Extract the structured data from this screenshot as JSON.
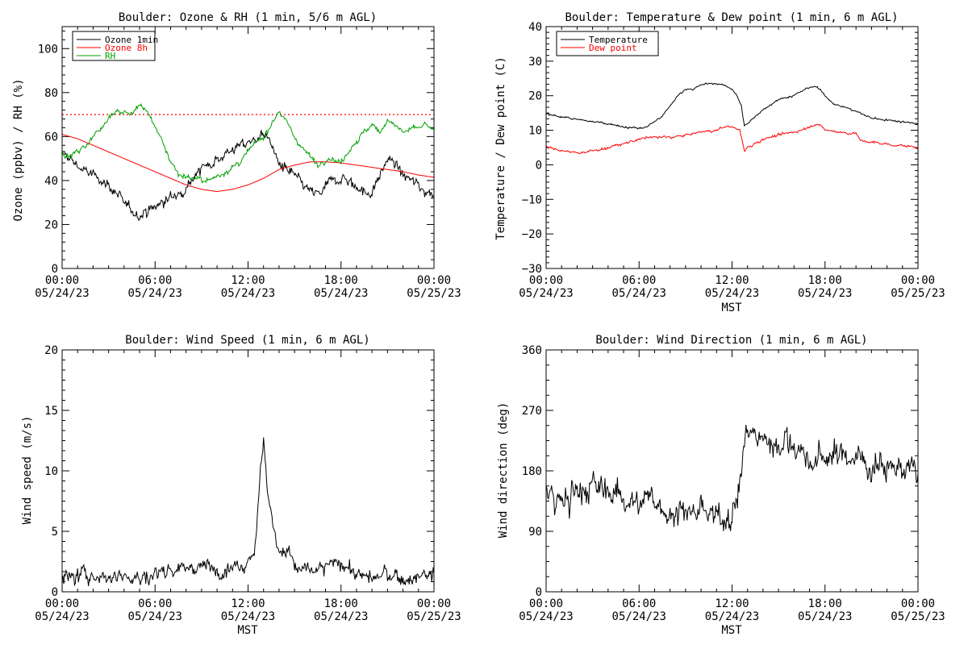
{
  "figure": {
    "background": "#ffffff"
  },
  "panels": [
    {
      "id": "ozone-rh",
      "title": "Boulder: Ozone & RH (1 min, 5/6 m AGL)",
      "ylabel": "Ozone (ppbv) / RH (%)",
      "xlabel": "",
      "yticks": [
        "0",
        "20",
        "40",
        "60",
        "80",
        "100"
      ],
      "xticks_time": [
        "00:00",
        "06:00",
        "12:00",
        "18:00",
        "00:00"
      ],
      "xticks_date": [
        "05/24/23",
        "05/24/23",
        "05/24/23",
        "05/24/23",
        "05/25/23"
      ],
      "legend": [
        "Ozone 1min",
        "Ozone 8h",
        "RH"
      ]
    },
    {
      "id": "temp-dew",
      "title": "Boulder: Temperature & Dew point (1 min, 6 m AGL)",
      "ylabel": "Temperature / Dew point (C)",
      "xlabel": "MST",
      "yticks": [
        "−30",
        "−20",
        "−10",
        "0",
        "10",
        "20",
        "30",
        "40"
      ],
      "xticks_time": [
        "00:00",
        "06:00",
        "12:00",
        "18:00",
        "00:00"
      ],
      "xticks_date": [
        "05/24/23",
        "05/24/23",
        "05/24/23",
        "05/24/23",
        "05/25/23"
      ],
      "legend": [
        "Temperature",
        "Dew point"
      ]
    },
    {
      "id": "wind-speed",
      "title": "Boulder: Wind Speed (1 min, 6 m AGL)",
      "ylabel": "Wind speed (m/s)",
      "xlabel": "MST",
      "yticks": [
        "0",
        "5",
        "10",
        "15",
        "20"
      ],
      "xticks_time": [
        "00:00",
        "06:00",
        "12:00",
        "18:00",
        "00:00"
      ],
      "xticks_date": [
        "05/24/23",
        "05/24/23",
        "05/24/23",
        "05/24/23",
        "05/25/23"
      ],
      "legend": []
    },
    {
      "id": "wind-dir",
      "title": "Boulder: Wind Direction (1 min, 6 m AGL)",
      "ylabel": "Wind direction (deg)",
      "xlabel": "MST",
      "yticks": [
        "0",
        "90",
        "180",
        "270",
        "360"
      ],
      "xticks_time": [
        "00:00",
        "06:00",
        "12:00",
        "18:00",
        "00:00"
      ],
      "xticks_date": [
        "05/24/23",
        "05/24/23",
        "05/24/23",
        "05/24/23",
        "05/25/23"
      ],
      "legend": []
    }
  ],
  "chart_data": [
    {
      "type": "line",
      "title": "Boulder: Ozone & RH (1 min, 5/6 m AGL)",
      "xlabel": "",
      "ylabel": "Ozone (ppbv) / RH (%)",
      "xlim": [
        0,
        24
      ],
      "ylim": [
        0,
        110
      ],
      "yticks": [
        0,
        20,
        40,
        60,
        80,
        100
      ],
      "legend_position": "top-left",
      "reference_lines": [
        {
          "y": 70,
          "style": "dotted",
          "color": "#ff0000"
        }
      ],
      "series": [
        {
          "name": "Ozone 1min",
          "color": "#000000",
          "noise": 3,
          "x": [
            0,
            0.5,
            1,
            1.5,
            2,
            2.5,
            3,
            3.5,
            4,
            4.5,
            5,
            5.5,
            6,
            6.5,
            7,
            7.5,
            8,
            8.5,
            9,
            9.5,
            10,
            10.5,
            11,
            11.5,
            12,
            12.5,
            13,
            13.5,
            14,
            14.5,
            15,
            15.5,
            16,
            16.5,
            17,
            17.5,
            18,
            18.5,
            19,
            19.5,
            20,
            20.5,
            21,
            21.5,
            22,
            22.5,
            23,
            23.5,
            24
          ],
          "values": [
            52,
            50,
            47,
            44,
            42,
            41,
            38,
            34,
            29,
            26,
            25,
            26,
            28,
            30,
            32,
            34,
            38,
            42,
            45,
            48,
            50,
            52,
            54,
            56,
            57,
            59,
            62,
            56,
            48,
            44,
            42,
            38,
            35,
            33,
            37,
            40,
            42,
            40,
            37,
            35,
            34,
            42,
            50,
            48,
            42,
            40,
            38,
            35,
            35
          ]
        },
        {
          "name": "Ozone 8h",
          "color": "#ff0000",
          "noise": 0,
          "x": [
            0,
            1,
            2,
            3,
            4,
            5,
            6,
            7,
            8,
            9,
            10,
            11,
            12,
            13,
            14,
            15,
            16,
            17,
            18,
            19,
            20,
            21,
            22,
            23,
            24
          ],
          "values": [
            61,
            59,
            56,
            53,
            50,
            47,
            44,
            41,
            38,
            36,
            35,
            36,
            38,
            41,
            45,
            47,
            48.5,
            48.5,
            48,
            47,
            46,
            45,
            44,
            42.5,
            41.5
          ]
        },
        {
          "name": "RH",
          "color": "#00a000",
          "noise": 1.5,
          "x": [
            0,
            0.5,
            1,
            1.5,
            2,
            2.5,
            3,
            3.5,
            4,
            4.5,
            5,
            5.5,
            6,
            6.5,
            7,
            7.5,
            8,
            8.5,
            9,
            9.5,
            10,
            10.5,
            11,
            11.5,
            12,
            12.5,
            13,
            13.5,
            14,
            14.5,
            15,
            15.5,
            16,
            16.5,
            17,
            17.5,
            18,
            18.5,
            19,
            19.5,
            20,
            20.5,
            21,
            21.5,
            22,
            22.5,
            23,
            23.5,
            24
          ],
          "values": [
            52,
            51,
            53,
            56,
            60,
            64,
            69,
            72,
            71,
            70,
            75,
            71,
            65,
            57,
            49,
            43,
            42,
            41,
            40,
            40,
            42,
            44,
            46,
            48,
            53,
            57,
            60,
            66,
            72,
            66,
            60,
            55,
            51,
            47,
            50,
            50,
            48,
            54,
            58,
            62,
            65,
            62,
            68,
            65,
            62,
            63,
            64,
            65,
            63
          ]
        }
      ]
    },
    {
      "type": "line",
      "title": "Boulder: Temperature & Dew point (1 min, 6 m AGL)",
      "xlabel": "MST",
      "ylabel": "Temperature / Dew point (C)",
      "xlim": [
        0,
        24
      ],
      "ylim": [
        -30,
        40
      ],
      "yticks": [
        -30,
        -20,
        -10,
        0,
        10,
        20,
        30,
        40
      ],
      "legend_position": "top-left",
      "series": [
        {
          "name": "Temperature",
          "color": "#000000",
          "noise": 0.35,
          "x": [
            0,
            1,
            2,
            3,
            4,
            5,
            6,
            6.5,
            7,
            7.5,
            8,
            8.5,
            9,
            9.5,
            10,
            10.5,
            11,
            11.5,
            12,
            12.3,
            12.6,
            12.8,
            13,
            13.5,
            14,
            15,
            16,
            17,
            17.5,
            18,
            18.5,
            19,
            20,
            21,
            22,
            23,
            24
          ],
          "values": [
            14.5,
            14,
            13,
            12.5,
            12,
            11,
            10.5,
            11,
            12.5,
            14,
            17,
            20,
            22,
            22,
            23,
            23.5,
            23.5,
            23,
            22,
            20,
            17,
            11,
            12,
            14,
            16,
            19,
            20,
            22.5,
            22.5,
            20,
            18,
            17,
            15.5,
            13.5,
            13,
            12.5,
            12
          ]
        },
        {
          "name": "Dew point",
          "color": "#ff0000",
          "noise": 0.45,
          "x": [
            0,
            1,
            2,
            3,
            4,
            5,
            6,
            7,
            8,
            9,
            10,
            11,
            11.5,
            12,
            12.5,
            12.8,
            13,
            14,
            15,
            16,
            17,
            17.5,
            18,
            19,
            20,
            20.3,
            21,
            22,
            23,
            24
          ],
          "values": [
            5,
            4,
            3.5,
            4,
            5,
            6,
            7.5,
            8,
            8,
            8.5,
            9.5,
            10,
            11,
            11,
            10,
            4,
            5,
            7.5,
            8.5,
            9.5,
            11,
            12,
            10,
            9.5,
            9,
            7,
            6.5,
            6,
            5.5,
            5
          ]
        }
      ]
    },
    {
      "type": "line",
      "title": "Boulder: Wind Speed (1 min, 6 m AGL)",
      "xlabel": "MST",
      "ylabel": "Wind speed (m/s)",
      "xlim": [
        0,
        24
      ],
      "ylim": [
        0,
        20
      ],
      "yticks": [
        0,
        5,
        10,
        15,
        20
      ],
      "series": [
        {
          "name": "",
          "color": "#000000",
          "noise": 0.8,
          "x": [
            0,
            1,
            2,
            3,
            4,
            5,
            6,
            7,
            8,
            9,
            10,
            11,
            12,
            12.5,
            12.8,
            13,
            13.2,
            13.5,
            14,
            14.5,
            15,
            15.5,
            16,
            17,
            18,
            19,
            20,
            21,
            22,
            23,
            24
          ],
          "values": [
            1,
            1.2,
            1.5,
            1.2,
            1.5,
            1,
            1.5,
            2,
            2,
            2,
            2,
            2.2,
            2.5,
            4,
            10,
            13,
            9,
            6,
            3.5,
            3.5,
            2,
            2,
            1.5,
            2,
            2.5,
            1.5,
            1,
            1.5,
            1,
            1.2,
            1.5
          ]
        }
      ]
    },
    {
      "type": "line",
      "title": "Boulder: Wind Direction (1 min, 6 m AGL)",
      "xlabel": "MST",
      "ylabel": "Wind direction (deg)",
      "xlim": [
        0,
        24
      ],
      "ylim": [
        0,
        360
      ],
      "yticks": [
        0,
        90,
        180,
        270,
        360
      ],
      "series": [
        {
          "name": "",
          "color": "#000000",
          "noise": 25,
          "x": [
            0,
            1,
            2,
            3,
            4,
            5,
            6,
            7,
            8,
            9,
            10,
            11,
            12,
            12.5,
            13,
            13.5,
            14,
            15,
            16,
            17,
            18,
            19,
            20,
            21,
            22,
            23,
            24
          ],
          "values": [
            150,
            130,
            150,
            155,
            150,
            145,
            130,
            135,
            120,
            120,
            115,
            110,
            120,
            160,
            240,
            235,
            225,
            225,
            220,
            190,
            200,
            205,
            200,
            190,
            190,
            185,
            170
          ]
        }
      ]
    }
  ]
}
